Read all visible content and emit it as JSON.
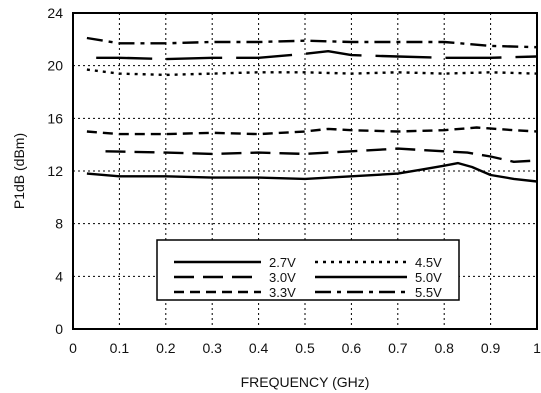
{
  "chart_data": {
    "type": "line",
    "xlabel": "FREQUENCY (GHz)",
    "ylabel": "P1dB (dBm)",
    "xlim": [
      0,
      1
    ],
    "ylim": [
      0,
      24
    ],
    "x_ticks": [
      {
        "value": 0,
        "label": "0"
      },
      {
        "value": 0.1,
        "label": "0.1"
      },
      {
        "value": 0.2,
        "label": "0.2"
      },
      {
        "value": 0.3,
        "label": "0.3"
      },
      {
        "value": 0.4,
        "label": "0.4"
      },
      {
        "value": 0.5,
        "label": "0.5"
      },
      {
        "value": 0.6,
        "label": "0.6"
      },
      {
        "value": 0.7,
        "label": "0.7"
      },
      {
        "value": 0.8,
        "label": "0.8"
      },
      {
        "value": 0.9,
        "label": "0.9"
      },
      {
        "value": 1,
        "label": "1"
      }
    ],
    "y_ticks": [
      {
        "value": 0,
        "label": "0"
      },
      {
        "value": 4,
        "label": "4"
      },
      {
        "value": 8,
        "label": "8"
      },
      {
        "value": 12,
        "label": "12"
      },
      {
        "value": 16,
        "label": "16"
      },
      {
        "value": 20,
        "label": "20"
      },
      {
        "value": 24,
        "label": "24"
      }
    ],
    "grid": true,
    "legend": {
      "placement": "bottom-center",
      "columns": 2
    },
    "series": [
      {
        "name": "2.7V",
        "style": "solid",
        "x": [
          0.03,
          0.1,
          0.2,
          0.3,
          0.4,
          0.5,
          0.6,
          0.7,
          0.75,
          0.8,
          0.83,
          0.86,
          0.9,
          0.95,
          1.0
        ],
        "y": [
          11.8,
          11.6,
          11.6,
          11.5,
          11.5,
          11.4,
          11.6,
          11.8,
          12.1,
          12.4,
          12.6,
          12.3,
          11.7,
          11.4,
          11.2
        ]
      },
      {
        "name": "3.0V",
        "style": "long-dash",
        "x": [
          0.07,
          0.2,
          0.3,
          0.4,
          0.5,
          0.6,
          0.7,
          0.8,
          0.85,
          0.9,
          0.95,
          1.0
        ],
        "y": [
          13.5,
          13.4,
          13.3,
          13.4,
          13.3,
          13.5,
          13.7,
          13.5,
          13.4,
          13.1,
          12.7,
          12.8
        ]
      },
      {
        "name": "3.3V",
        "style": "dash",
        "x": [
          0.03,
          0.1,
          0.2,
          0.3,
          0.4,
          0.5,
          0.55,
          0.6,
          0.7,
          0.8,
          0.87,
          0.95,
          1.0
        ],
        "y": [
          15.0,
          14.8,
          14.8,
          14.9,
          14.8,
          15.0,
          15.2,
          15.1,
          15.0,
          15.1,
          15.3,
          15.1,
          15.0
        ]
      },
      {
        "name": "4.5V",
        "style": "dot",
        "x": [
          0.03,
          0.1,
          0.2,
          0.3,
          0.4,
          0.5,
          0.6,
          0.7,
          0.8,
          0.9,
          1.0
        ],
        "y": [
          19.7,
          19.4,
          19.3,
          19.4,
          19.5,
          19.5,
          19.4,
          19.5,
          19.4,
          19.5,
          19.4
        ]
      },
      {
        "name": "5.0V",
        "style": "gapped-solid",
        "x": [
          0.05,
          0.1,
          0.2,
          0.3,
          0.4,
          0.5,
          0.55,
          0.6,
          0.7,
          0.8,
          0.9,
          1.0
        ],
        "y": [
          20.6,
          20.6,
          20.5,
          20.6,
          20.6,
          20.9,
          21.1,
          20.8,
          20.7,
          20.6,
          20.6,
          20.7
        ]
      },
      {
        "name": "5.5V",
        "style": "dash-dot",
        "x": [
          0.03,
          0.1,
          0.2,
          0.3,
          0.4,
          0.5,
          0.6,
          0.7,
          0.8,
          0.9,
          1.0
        ],
        "y": [
          22.1,
          21.7,
          21.7,
          21.8,
          21.8,
          21.9,
          21.8,
          21.8,
          21.8,
          21.5,
          21.4
        ]
      }
    ]
  }
}
